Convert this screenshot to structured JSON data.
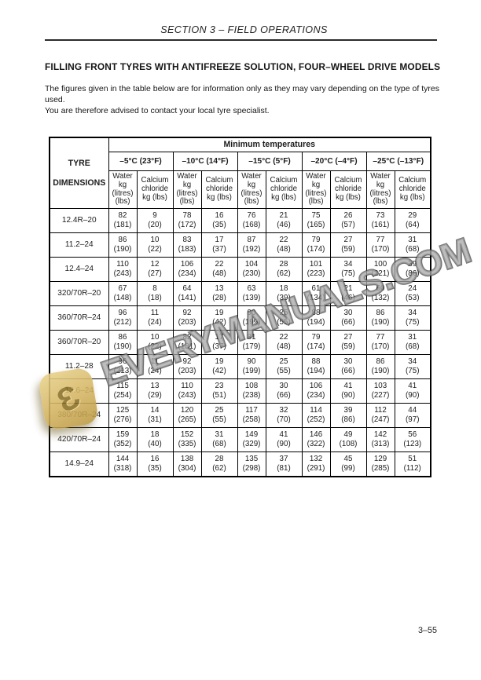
{
  "header": {
    "section_title": "SECTION 3 – FIELD OPERATIONS"
  },
  "content": {
    "title": "FILLING FRONT TYRES WITH ANTIFREEZE SOLUTION, FOUR–WHEEL DRIVE MODELS",
    "intro_line1": "The figures given in the table below are for information only as they may vary depending on the type of tyres used.",
    "intro_line2": "You are therefore advised to contact your local tyre specialist."
  },
  "table": {
    "corner": [
      "TYRE",
      "DIMENSIONS"
    ],
    "group_header": "Minimum temperatures",
    "temperature_columns": [
      "–5°C (23°F)",
      "–10°C (14°F)",
      "–15°C (5°F)",
      "–20°C (–4°F)",
      "–25°C (–13°F)"
    ],
    "water_header_lines": [
      "Water",
      "kg",
      "(litres)",
      "(lbs)"
    ],
    "calcium_header_lines": [
      "Calcium",
      "chloride",
      "kg (lbs)"
    ],
    "rows": [
      {
        "dimension": "12.4R–20",
        "cells": [
          [
            "82",
            "(181)"
          ],
          [
            "9",
            "(20)"
          ],
          [
            "78",
            "(172)"
          ],
          [
            "16",
            "(35)"
          ],
          [
            "76",
            "(168)"
          ],
          [
            "21",
            "(46)"
          ],
          [
            "75",
            "(165)"
          ],
          [
            "26",
            "(57)"
          ],
          [
            "73",
            "(161)"
          ],
          [
            "29",
            "(64)"
          ]
        ]
      },
      {
        "dimension": "11.2–24",
        "cells": [
          [
            "86",
            "(190)"
          ],
          [
            "10",
            "(22)"
          ],
          [
            "83",
            "(183)"
          ],
          [
            "17",
            "(37)"
          ],
          [
            "87",
            "(192)"
          ],
          [
            "22",
            "(48)"
          ],
          [
            "79",
            "(174)"
          ],
          [
            "27",
            "(59)"
          ],
          [
            "77",
            "(170)"
          ],
          [
            "31",
            "(68)"
          ]
        ]
      },
      {
        "dimension": "12.4–24",
        "cells": [
          [
            "110",
            "(243)"
          ],
          [
            "12",
            "(27)"
          ],
          [
            "106",
            "(234)"
          ],
          [
            "22",
            "(48)"
          ],
          [
            "104",
            "(230)"
          ],
          [
            "28",
            "(62)"
          ],
          [
            "101",
            "(223)"
          ],
          [
            "34",
            "(75)"
          ],
          [
            "100",
            "(221)"
          ],
          [
            "39",
            "(86)"
          ]
        ]
      },
      {
        "dimension": "320/70R–20",
        "cells": [
          [
            "67",
            "(148)"
          ],
          [
            "8",
            "(18)"
          ],
          [
            "64",
            "(141)"
          ],
          [
            "13",
            "(28)"
          ],
          [
            "63",
            "(139)"
          ],
          [
            "18",
            "(39)"
          ],
          [
            "61",
            "(134)"
          ],
          [
            "21",
            "(46)"
          ],
          [
            "60",
            "(132)"
          ],
          [
            "24",
            "(53)"
          ]
        ]
      },
      {
        "dimension": "360/70R–24",
        "cells": [
          [
            "96",
            "(212)"
          ],
          [
            "11",
            "(24)"
          ],
          [
            "92",
            "(203)"
          ],
          [
            "19",
            "(42)"
          ],
          [
            "90",
            "(199)"
          ],
          [
            "25",
            "(55)"
          ],
          [
            "88",
            "(194)"
          ],
          [
            "30",
            "(66)"
          ],
          [
            "86",
            "(190)"
          ],
          [
            "34",
            "(75)"
          ]
        ]
      },
      {
        "dimension": "360/70R–20",
        "cells": [
          [
            "86",
            "(190)"
          ],
          [
            "10",
            "(22)"
          ],
          [
            "82",
            "(181)"
          ],
          [
            "17",
            "(37)"
          ],
          [
            "81",
            "(179)"
          ],
          [
            "22",
            "(48)"
          ],
          [
            "79",
            "(174)"
          ],
          [
            "27",
            "(59)"
          ],
          [
            "77",
            "(170)"
          ],
          [
            "31",
            "(68)"
          ]
        ]
      },
      {
        "dimension": "11.2–28",
        "cells": [
          [
            "96",
            "(213)"
          ],
          [
            "11",
            "(24)"
          ],
          [
            "92",
            "(203)"
          ],
          [
            "19",
            "(42)"
          ],
          [
            "90",
            "(199)"
          ],
          [
            "25",
            "(55)"
          ],
          [
            "88",
            "(194)"
          ],
          [
            "30",
            "(66)"
          ],
          [
            "86",
            "(190)"
          ],
          [
            "34",
            "(75)"
          ]
        ]
      },
      {
        "dimension": "13.6–24",
        "cells": [
          [
            "115",
            "(254)"
          ],
          [
            "13",
            "(29)"
          ],
          [
            "110",
            "(243)"
          ],
          [
            "23",
            "(51)"
          ],
          [
            "108",
            "(238)"
          ],
          [
            "30",
            "(66)"
          ],
          [
            "106",
            "(234)"
          ],
          [
            "41",
            "(90)"
          ],
          [
            "103",
            "(227)"
          ],
          [
            "41",
            "(90)"
          ]
        ]
      },
      {
        "dimension": "380/70R–24",
        "cells": [
          [
            "125",
            "(276)"
          ],
          [
            "14",
            "(31)"
          ],
          [
            "120",
            "(265)"
          ],
          [
            "25",
            "(55)"
          ],
          [
            "117",
            "(258)"
          ],
          [
            "32",
            "(70)"
          ],
          [
            "114",
            "(252)"
          ],
          [
            "39",
            "(86)"
          ],
          [
            "112",
            "(247)"
          ],
          [
            "44",
            "(97)"
          ]
        ]
      },
      {
        "dimension": "420/70R–24",
        "cells": [
          [
            "159",
            "(352)"
          ],
          [
            "18",
            "(40)"
          ],
          [
            "152",
            "(335)"
          ],
          [
            "31",
            "(68)"
          ],
          [
            "149",
            "(329)"
          ],
          [
            "41",
            "(90)"
          ],
          [
            "146",
            "(322)"
          ],
          [
            "49",
            "(108)"
          ],
          [
            "142",
            "(313)"
          ],
          [
            "56",
            "(123)"
          ]
        ]
      },
      {
        "dimension": "14.9–24",
        "cells": [
          [
            "144",
            "(318)"
          ],
          [
            "16",
            "(35)"
          ],
          [
            "138",
            "(304)"
          ],
          [
            "28",
            "(62)"
          ],
          [
            "135",
            "(298)"
          ],
          [
            "37",
            "(81)"
          ],
          [
            "132",
            "(291)"
          ],
          [
            "45",
            "(99)"
          ],
          [
            "129",
            "(285)"
          ],
          [
            "51",
            "(112)"
          ]
        ]
      }
    ]
  },
  "watermark": {
    "text": "EVERYMANUALS.COM",
    "logo_glyph": "Ɛ"
  },
  "footer": {
    "page_number": "3–55"
  }
}
